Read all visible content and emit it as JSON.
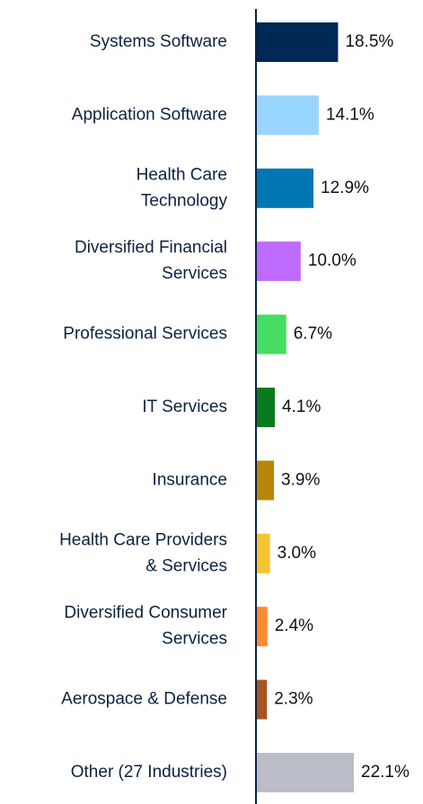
{
  "chart_data": {
    "type": "bar",
    "orientation": "horizontal",
    "categories": [
      [
        "Systems Software"
      ],
      [
        "Application Software"
      ],
      [
        "Health Care",
        "Technology"
      ],
      [
        "Diversified Financial",
        "Services"
      ],
      [
        "Professional Services"
      ],
      [
        "IT Services"
      ],
      [
        "Insurance"
      ],
      [
        "Health Care Providers",
        "& Services"
      ],
      [
        "Diversified Consumer",
        "Services"
      ],
      [
        "Aerospace & Defense"
      ],
      [
        "Other (27 Industries)"
      ]
    ],
    "values": [
      18.5,
      14.1,
      12.9,
      10.0,
      6.7,
      4.1,
      3.9,
      3.0,
      2.4,
      2.3,
      22.1
    ],
    "value_labels": [
      "18.5%",
      "14.1%",
      "12.9%",
      "10.0%",
      "6.7%",
      "4.1%",
      "3.9%",
      "3.0%",
      "2.4%",
      "2.3%",
      "22.1%"
    ],
    "colors": [
      "#002855",
      "#99d6ff",
      "#0077b3",
      "#bf6bff",
      "#47dd62",
      "#0a7a1e",
      "#b8860b",
      "#f7c331",
      "#ff8a2b",
      "#a8541c",
      "#babdc8"
    ]
  }
}
